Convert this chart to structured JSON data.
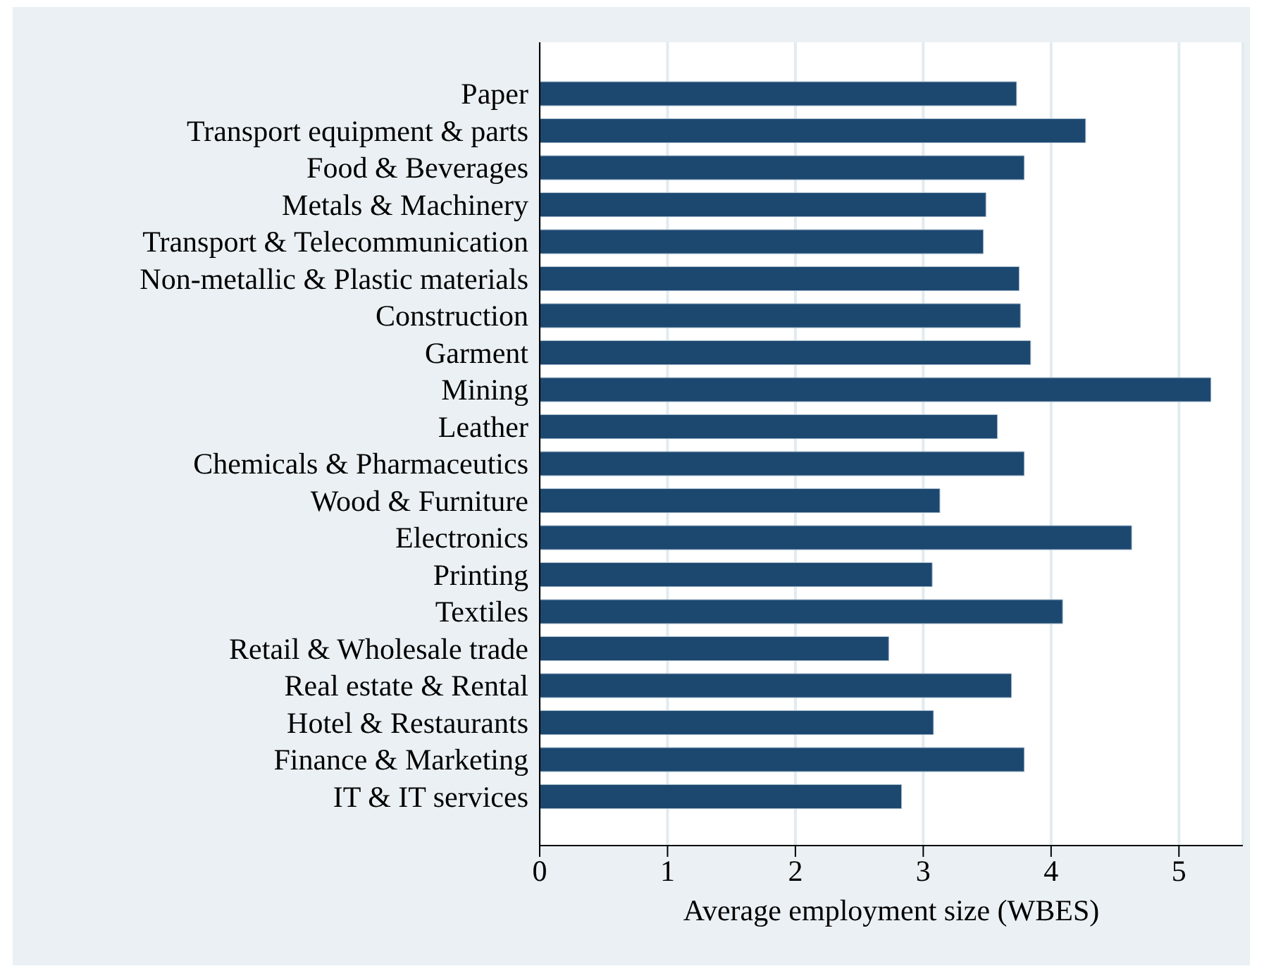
{
  "chart_data": {
    "type": "bar",
    "orientation": "horizontal",
    "xlabel": "Average employment size (WBES)",
    "categories": [
      "Paper",
      "Transport equipment & parts",
      "Food & Beverages",
      "Metals & Machinery",
      "Transport & Telecommunication",
      "Non-metallic & Plastic materials",
      "Construction",
      "Garment",
      "Mining",
      "Leather",
      "Chemicals & Pharmaceutics",
      "Wood & Furniture",
      "Electronics",
      "Printing",
      "Textiles",
      "Retail & Wholesale trade",
      "Real estate & Rental",
      "Hotel & Restaurants",
      "Finance & Marketing",
      "IT & IT services"
    ],
    "values": [
      3.73,
      4.27,
      3.79,
      3.49,
      3.47,
      3.75,
      3.76,
      3.84,
      5.25,
      3.58,
      3.79,
      3.13,
      4.63,
      3.07,
      4.09,
      2.73,
      3.69,
      3.08,
      3.79,
      2.83
    ],
    "color": "#1c4870",
    "xlim": [
      0,
      5.5
    ],
    "xticks": [
      0,
      1,
      2,
      3,
      4,
      5
    ],
    "grid": "x"
  }
}
